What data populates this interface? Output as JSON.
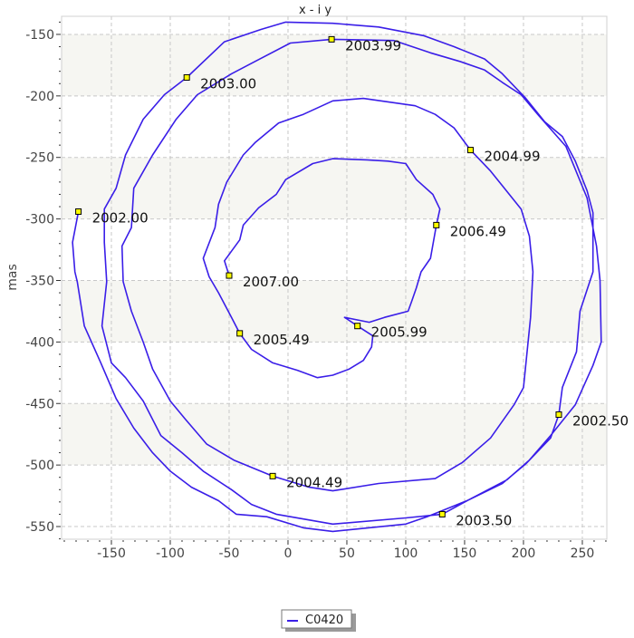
{
  "chart_data": {
    "type": "line",
    "title": "x - i y",
    "xlabel": "",
    "ylabel": "mas",
    "xlim": [
      -192.3,
      270.8
    ],
    "ylim": [
      -560.3,
      -135.3
    ],
    "xticks": [
      -150,
      -100,
      -50,
      0,
      50,
      100,
      150,
      200,
      250
    ],
    "yticks": [
      -150,
      -200,
      -250,
      -300,
      -350,
      -400,
      -450,
      -500,
      -550
    ],
    "grid": true,
    "legend_position": "bottom",
    "colors": {
      "line": "#3a1ee8",
      "marker_fill": "#ffff00",
      "marker_edge": "#000000",
      "band": "#f6f6f2",
      "grid": "#c8c8c8"
    },
    "series": [
      {
        "name": "C0420",
        "points": [
          [
            -178,
            -294
          ],
          [
            -183,
            -319
          ],
          [
            -181,
            -343
          ],
          [
            -179,
            -351
          ],
          [
            -173,
            -387
          ],
          [
            -159,
            -417
          ],
          [
            -146,
            -446
          ],
          [
            -131,
            -470
          ],
          [
            -115,
            -490
          ],
          [
            -100,
            -505
          ],
          [
            -82,
            -518
          ],
          [
            -59,
            -529
          ],
          [
            -44,
            -540
          ],
          [
            -18,
            -542
          ],
          [
            13,
            -551
          ],
          [
            38,
            -554
          ],
          [
            100,
            -548
          ],
          [
            118,
            -542
          ],
          [
            152,
            -529
          ],
          [
            182,
            -515
          ],
          [
            202,
            -499
          ],
          [
            223,
            -478
          ],
          [
            230,
            -459
          ],
          [
            233,
            -437
          ],
          [
            245,
            -408
          ],
          [
            248,
            -375
          ],
          [
            259,
            -343
          ],
          [
            259,
            -295
          ],
          [
            254,
            -277
          ],
          [
            244,
            -253
          ],
          [
            233,
            -233
          ],
          [
            218,
            -221
          ],
          [
            202,
            -202
          ],
          [
            182,
            -182
          ],
          [
            167,
            -170
          ],
          [
            141,
            -160
          ],
          [
            115,
            -151
          ],
          [
            77,
            -144
          ],
          [
            38,
            -141
          ],
          [
            -2,
            -140
          ],
          [
            -23,
            -146
          ],
          [
            -54,
            -156
          ],
          [
            -86,
            -185
          ],
          [
            -105,
            -199
          ],
          [
            -123,
            -219
          ],
          [
            -138,
            -248
          ],
          [
            -146,
            -275
          ],
          [
            -156,
            -292
          ],
          [
            -156,
            -319
          ],
          [
            -154,
            -351
          ],
          [
            -158,
            -387
          ],
          [
            -150,
            -417
          ],
          [
            -138,
            -429
          ],
          [
            -123,
            -448
          ],
          [
            -108,
            -476
          ],
          [
            -90,
            -490
          ],
          [
            -72,
            -505
          ],
          [
            -48,
            -520
          ],
          [
            -31,
            -532
          ],
          [
            -10,
            -540
          ],
          [
            38,
            -548
          ],
          [
            100,
            -543
          ],
          [
            131,
            -540
          ],
          [
            156,
            -527
          ],
          [
            186,
            -512
          ],
          [
            205,
            -496
          ],
          [
            223,
            -476
          ],
          [
            244,
            -451
          ],
          [
            259,
            -419
          ],
          [
            266,
            -400
          ],
          [
            265,
            -350
          ],
          [
            262,
            -322
          ],
          [
            254,
            -283
          ],
          [
            236,
            -241
          ],
          [
            213,
            -216
          ],
          [
            198,
            -199
          ],
          [
            182,
            -189
          ],
          [
            167,
            -179
          ],
          [
            146,
            -172
          ],
          [
            121,
            -165
          ],
          [
            90,
            -155
          ],
          [
            37,
            -154
          ],
          [
            2,
            -157
          ],
          [
            -28,
            -172
          ],
          [
            -48,
            -182
          ],
          [
            -77,
            -199
          ],
          [
            -95,
            -219
          ],
          [
            -115,
            -248
          ],
          [
            -131,
            -275
          ],
          [
            -133,
            -307
          ],
          [
            -141,
            -322
          ],
          [
            -140,
            -351
          ],
          [
            -133,
            -375
          ],
          [
            -123,
            -400
          ],
          [
            -115,
            -422
          ],
          [
            -100,
            -448
          ],
          [
            -87,
            -463
          ],
          [
            -69,
            -483
          ],
          [
            -46,
            -496
          ],
          [
            -13,
            -509
          ],
          [
            18,
            -518
          ],
          [
            38,
            -521
          ],
          [
            77,
            -515
          ],
          [
            125,
            -511
          ],
          [
            148,
            -498
          ],
          [
            172,
            -478
          ],
          [
            192,
            -451
          ],
          [
            200,
            -437
          ],
          [
            206,
            -380
          ],
          [
            208,
            -343
          ],
          [
            205,
            -314
          ],
          [
            198,
            -292
          ],
          [
            182,
            -273
          ],
          [
            172,
            -261
          ],
          [
            155,
            -244
          ],
          [
            141,
            -226
          ],
          [
            125,
            -215
          ],
          [
            108,
            -208
          ],
          [
            64,
            -202
          ],
          [
            38,
            -204
          ],
          [
            13,
            -215
          ],
          [
            -8,
            -222
          ],
          [
            -28,
            -238
          ],
          [
            -38,
            -248
          ],
          [
            -52,
            -270
          ],
          [
            -59,
            -288
          ],
          [
            -62,
            -307
          ],
          [
            -72,
            -332
          ],
          [
            -67,
            -347
          ],
          [
            -59,
            -360
          ],
          [
            -48,
            -380
          ],
          [
            -41,
            -393
          ],
          [
            -31,
            -406
          ],
          [
            -13,
            -417
          ],
          [
            8,
            -423
          ],
          [
            25,
            -429
          ],
          [
            38,
            -427
          ],
          [
            52,
            -422
          ],
          [
            64,
            -415
          ],
          [
            71,
            -404
          ],
          [
            72,
            -395
          ],
          [
            59,
            -387
          ],
          [
            48,
            -380
          ],
          [
            69,
            -384
          ],
          [
            82,
            -380
          ],
          [
            102,
            -375
          ],
          [
            105,
            -367
          ],
          [
            109,
            -356
          ],
          [
            113,
            -343
          ],
          [
            121,
            -332
          ],
          [
            126,
            -305
          ],
          [
            129,
            -292
          ],
          [
            123,
            -280
          ],
          [
            109,
            -268
          ],
          [
            100,
            -255
          ],
          [
            85,
            -253
          ],
          [
            67,
            -252
          ],
          [
            38,
            -251
          ],
          [
            21,
            -255
          ],
          [
            -2,
            -268
          ],
          [
            -10,
            -280
          ],
          [
            -25,
            -291
          ],
          [
            -38,
            -305
          ],
          [
            -41,
            -317
          ],
          [
            -54,
            -334
          ],
          [
            -50,
            -346
          ]
        ]
      }
    ],
    "annotations": [
      {
        "label": "2002.00",
        "x": -178,
        "y": -294
      },
      {
        "label": "2002.50",
        "x": 230,
        "y": -459
      },
      {
        "label": "2003.00",
        "x": -86,
        "y": -185
      },
      {
        "label": "2003.50",
        "x": 131,
        "y": -540
      },
      {
        "label": "2003.99",
        "x": 37,
        "y": -154
      },
      {
        "label": "2004.49",
        "x": -13,
        "y": -509
      },
      {
        "label": "2004.99",
        "x": 155,
        "y": -244
      },
      {
        "label": "2005.49",
        "x": -41,
        "y": -393
      },
      {
        "label": "2005.99",
        "x": 59,
        "y": -387
      },
      {
        "label": "2006.49",
        "x": 126,
        "y": -305
      },
      {
        "label": "2007.00",
        "x": -50,
        "y": -346
      }
    ],
    "shaded_bands": [
      [
        -200,
        -150
      ],
      [
        -300,
        -250
      ],
      [
        -400,
        -350
      ],
      [
        -500,
        -450
      ]
    ]
  }
}
